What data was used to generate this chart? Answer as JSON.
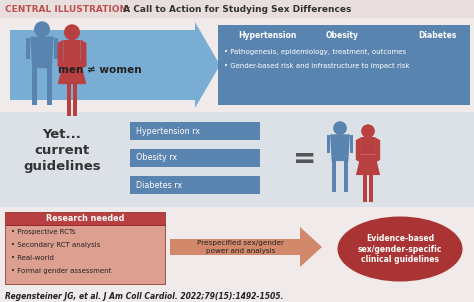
{
  "title_red": "CENTRAL ILLUSTRATION:",
  "title_black": " A Call to Action for Studying Sex Differences",
  "bg_color": "#f0eaea",
  "top_arrow_color": "#7aadd4",
  "top_box_color": "#5a84b0",
  "top_box_titles": [
    "Hypertension",
    "Obesity",
    "Diabetes"
  ],
  "top_box_bullets": [
    "• Pathogenesis, epidemiology, treatment, outcomes",
    "• Gender-based risk and infrastructure to impact risk"
  ],
  "men_women_text": "men ≠ women",
  "middle_bg_color": "#c5d5e5",
  "middle_left_text": "Yet...\ncurrent\nguidelines",
  "middle_boxes": [
    "Hypertension rx",
    "Obesity rx",
    "Diabetes rx"
  ],
  "middle_box_color": "#5a84b0",
  "equal_sign": "=",
  "bottom_left_box_color": "#b94040",
  "bottom_left_header": "Research needed",
  "bottom_left_bg": "#dda090",
  "bottom_left_bullets": [
    "• Prospective RCTs",
    "• Secondary RCT analysis",
    "• Real-world",
    "• Formal gender assessment"
  ],
  "bottom_arrow_color": "#cc7755",
  "bottom_arrow_text": "Prespecified sex/gender\npower and analysis",
  "bottom_circle_color": "#aa3333",
  "bottom_circle_text": "Evidence-based\nsex/gender-specific\nclinical guidelines",
  "citation": "Regensteiner JG, et al. J Am Coll Cardiol. 2022;79(15):1492-1505.",
  "male_color": "#5a84b0",
  "female_color": "#b94040",
  "title_bg_color": "#e8dede"
}
